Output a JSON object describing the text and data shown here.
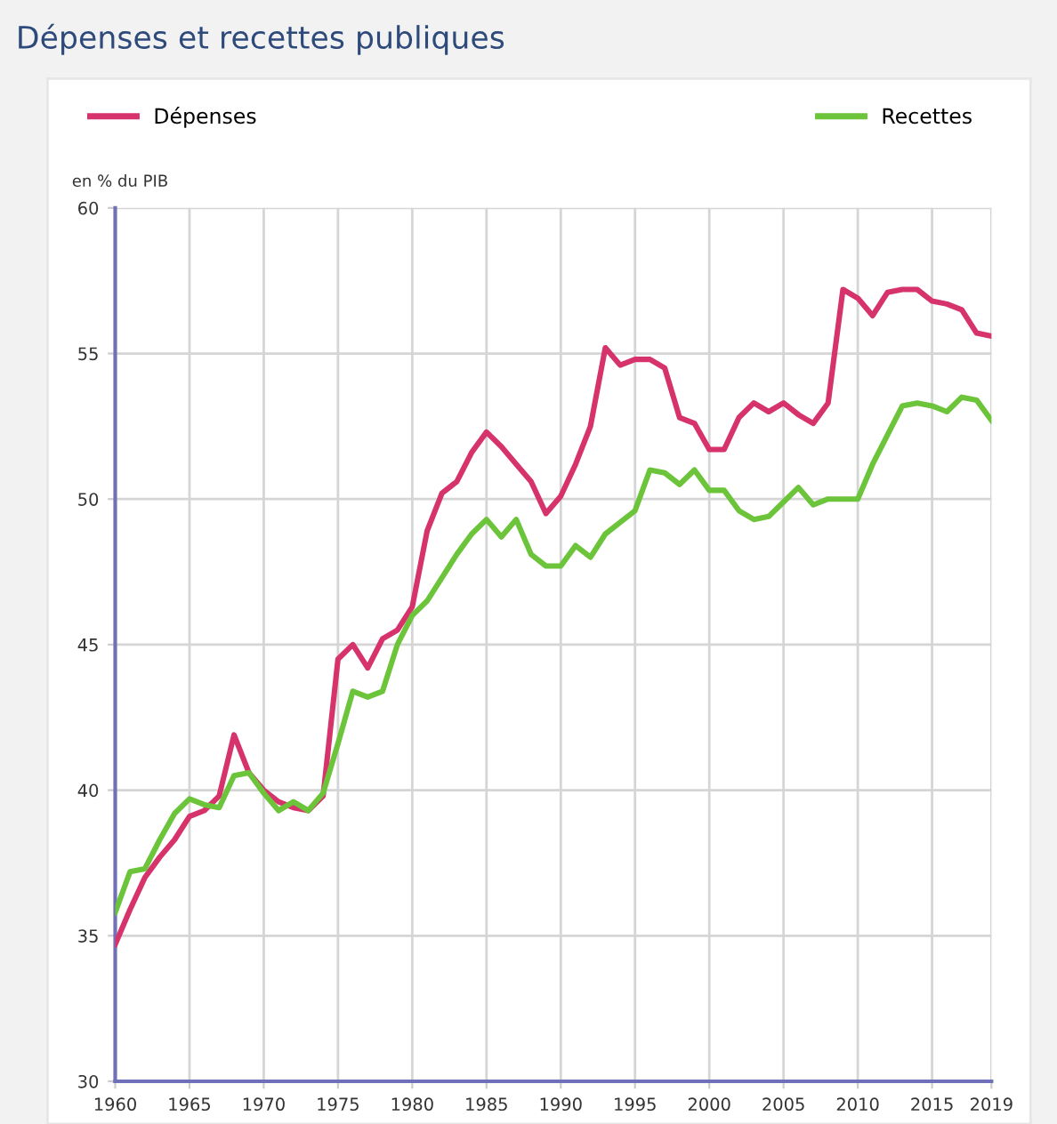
{
  "chart_data": {
    "type": "line",
    "title": "Dépenses et recettes publiques",
    "ylabel": "en % du PIB",
    "x": [
      1960,
      1961,
      1962,
      1963,
      1964,
      1965,
      1966,
      1967,
      1968,
      1969,
      1970,
      1971,
      1972,
      1973,
      1974,
      1975,
      1976,
      1977,
      1978,
      1979,
      1980,
      1981,
      1982,
      1983,
      1984,
      1985,
      1986,
      1987,
      1988,
      1989,
      1990,
      1991,
      1992,
      1993,
      1994,
      1995,
      1996,
      1997,
      1998,
      1999,
      2000,
      2001,
      2002,
      2003,
      2004,
      2005,
      2006,
      2007,
      2008,
      2009,
      2010,
      2011,
      2012,
      2013,
      2014,
      2015,
      2016,
      2017,
      2018,
      2019
    ],
    "series": [
      {
        "name": "Dépenses",
        "color": "#d6336c",
        "values": [
          34.7,
          35.9,
          37.0,
          37.7,
          38.3,
          39.1,
          39.3,
          39.8,
          41.9,
          40.6,
          40.0,
          39.6,
          39.4,
          39.3,
          39.8,
          44.5,
          45.0,
          44.2,
          45.2,
          45.5,
          46.3,
          48.9,
          50.2,
          50.6,
          51.6,
          52.3,
          51.8,
          51.2,
          50.6,
          49.5,
          50.1,
          51.2,
          52.5,
          55.2,
          54.6,
          54.8,
          54.8,
          54.5,
          52.8,
          52.6,
          51.7,
          51.7,
          52.8,
          53.3,
          53.0,
          53.3,
          52.9,
          52.6,
          53.3,
          57.2,
          56.9,
          56.3,
          57.1,
          57.2,
          57.2,
          56.8,
          56.7,
          56.5,
          55.7,
          55.6
        ]
      },
      {
        "name": "Recettes",
        "color": "#6cc43a",
        "values": [
          35.8,
          37.2,
          37.3,
          38.3,
          39.2,
          39.7,
          39.5,
          39.4,
          40.5,
          40.6,
          39.9,
          39.3,
          39.6,
          39.3,
          39.9,
          41.6,
          43.4,
          43.2,
          43.4,
          45.0,
          46.0,
          46.5,
          47.3,
          48.1,
          48.8,
          49.3,
          48.7,
          49.3,
          48.1,
          47.7,
          47.7,
          48.4,
          48.0,
          48.8,
          49.2,
          49.6,
          51.0,
          50.9,
          50.5,
          51.0,
          50.3,
          50.3,
          49.6,
          49.3,
          49.4,
          49.9,
          50.4,
          49.8,
          50.0,
          50.0,
          50.0,
          51.2,
          52.2,
          53.2,
          53.3,
          53.2,
          53.0,
          53.5,
          53.4,
          52.7
        ]
      }
    ],
    "xlim": [
      1960,
      2019
    ],
    "xticks": [
      1960,
      1965,
      1970,
      1975,
      1980,
      1985,
      1990,
      1995,
      2000,
      2005,
      2010,
      2015,
      2019
    ],
    "ylim": [
      30,
      60
    ],
    "yticks": [
      30,
      35,
      40,
      45,
      50,
      55,
      60
    ],
    "grid": true,
    "legend": "top",
    "marker": "none",
    "line_style": "solid"
  }
}
